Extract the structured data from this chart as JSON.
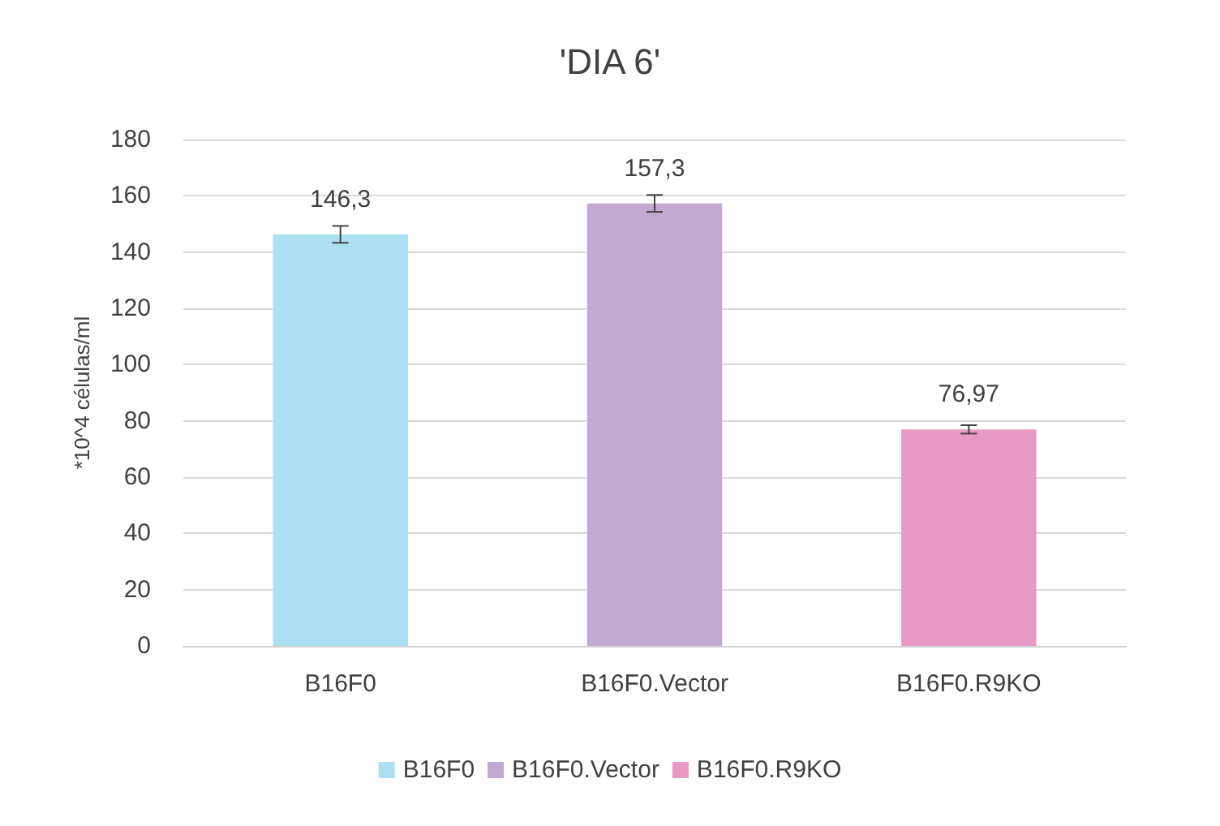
{
  "chart_data": {
    "type": "bar",
    "title": "'DIA 6'",
    "ylabel": "*10^4 células/ml",
    "categories": [
      "B16F0",
      "B16F0.Vector",
      "B16F0.R9KO"
    ],
    "series": [
      {
        "name": "B16F0",
        "color": "#addff2",
        "values": [
          146.3,
          null,
          null
        ],
        "errors": [
          3,
          null,
          null
        ],
        "value_labels": [
          "146,3",
          null,
          null
        ]
      },
      {
        "name": "B16F0.Vector",
        "color": "#c2a9d2",
        "values": [
          null,
          157.3,
          null
        ],
        "errors": [
          null,
          3,
          null
        ],
        "value_labels": [
          null,
          "157,3",
          null
        ]
      },
      {
        "name": "B16F0.R9KO",
        "color": "#e89ac4",
        "values": [
          null,
          null,
          76.97
        ],
        "errors": [
          null,
          null,
          1.5
        ],
        "value_labels": [
          null,
          null,
          "76,97"
        ]
      }
    ],
    "ylim": [
      0,
      180
    ],
    "yticks": [
      0,
      20,
      40,
      60,
      80,
      100,
      120,
      140,
      160,
      180
    ],
    "grid": "y",
    "legend": "bottom"
  }
}
